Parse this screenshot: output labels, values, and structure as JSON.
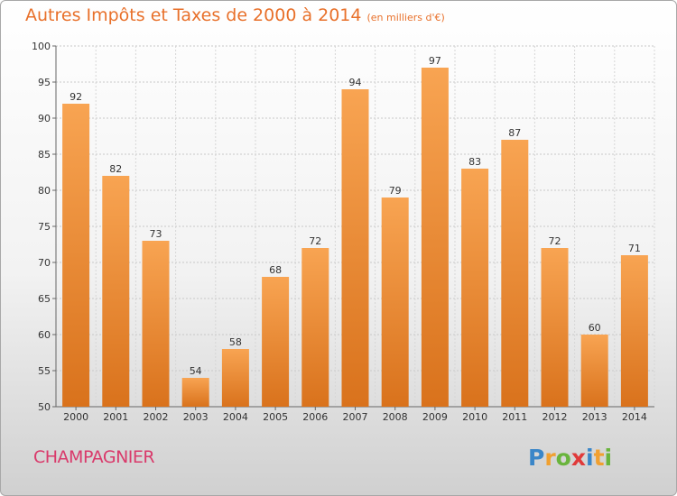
{
  "chart_data": {
    "type": "bar",
    "title": "Autres Impôts et Taxes de 2000 à 2014",
    "unit_label": "(en milliers d'€)",
    "categories": [
      "2000",
      "2001",
      "2002",
      "2003",
      "2004",
      "2005",
      "2006",
      "2007",
      "2008",
      "2009",
      "2010",
      "2011",
      "2012",
      "2013",
      "2014"
    ],
    "values": [
      92,
      82,
      73,
      54,
      58,
      68,
      72,
      94,
      79,
      97,
      83,
      87,
      72,
      60,
      71
    ],
    "ylim": [
      50,
      100
    ],
    "yticks": [
      50,
      55,
      60,
      65,
      70,
      75,
      80,
      85,
      90,
      95,
      100
    ],
    "grid": true,
    "bar_color": "#f0913a",
    "title_color": "#e8702a"
  },
  "footer": {
    "place_name": "CHAMPAGNIER",
    "place_color": "#d93a6b",
    "logo_text": "Proxiti"
  }
}
